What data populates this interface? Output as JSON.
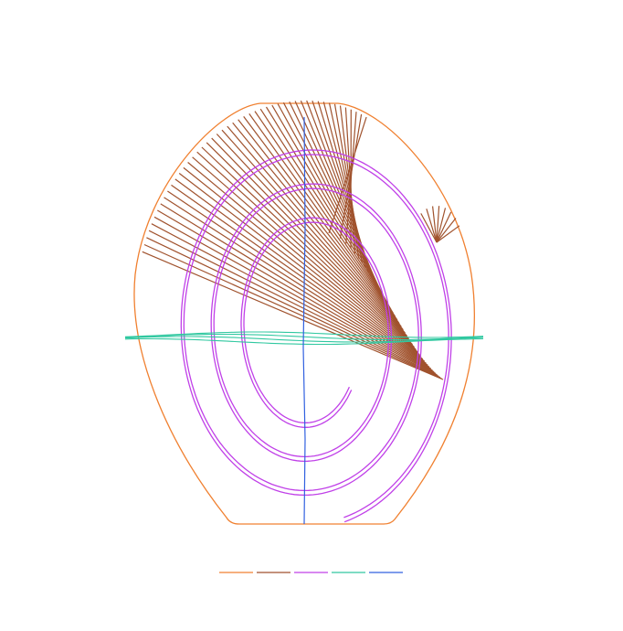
{
  "legend": {
    "colors": [
      "#f08030",
      "#a0522d",
      "#c040e8",
      "#30c8a0",
      "#3060e0"
    ]
  }
}
